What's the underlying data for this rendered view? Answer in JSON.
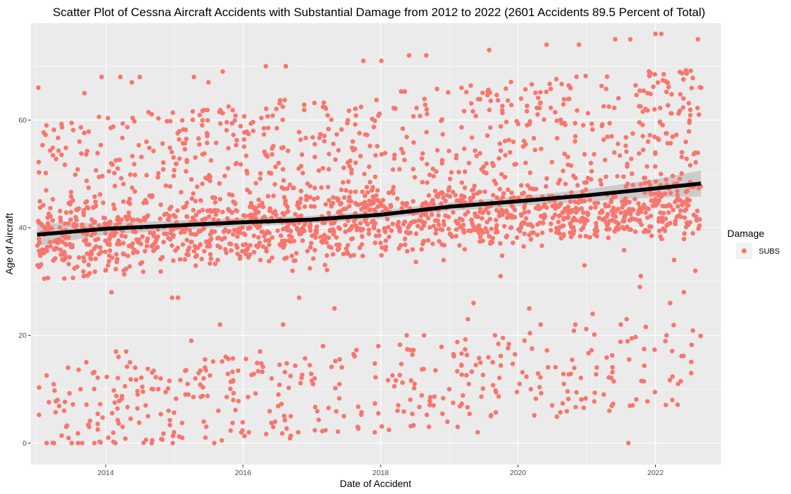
{
  "chart_data": {
    "type": "scatter",
    "title": "Scatter Plot of Cessna Aircraft Accidents with Substantial Damage from 2012 to 2022 (2601 Accidents 89.5 Percent of Total)",
    "xlabel": "Date of Accident",
    "ylabel": "Age of Aircraft",
    "x_scale": "date",
    "xlim": [
      "2012-11-29",
      "2022-12-15"
    ],
    "ylim": [
      -4,
      78
    ],
    "x_ticks": [
      {
        "value": "2014-01-01",
        "label": "2014"
      },
      {
        "value": "2016-01-01",
        "label": "2016"
      },
      {
        "value": "2018-01-01",
        "label": "2018"
      },
      {
        "value": "2020-01-01",
        "label": "2020"
      },
      {
        "value": "2022-01-01",
        "label": "2022"
      }
    ],
    "y_ticks": [
      {
        "value": 0,
        "label": "0"
      },
      {
        "value": 20,
        "label": "20"
      },
      {
        "value": 40,
        "label": "40"
      },
      {
        "value": 60,
        "label": "60"
      }
    ],
    "grid": true,
    "background": "#ebebeb",
    "point_color": "#f8766d",
    "trend_color": "#000000",
    "band_color": "#bdbdbd",
    "legend": {
      "title": "Damage",
      "position": "right",
      "entries": [
        {
          "label": "SUBS",
          "color": "#f8766d"
        }
      ]
    },
    "series": [
      {
        "name": "SUBS",
        "points": [
          [
            "2013-01-08",
            66
          ],
          [
            "2013-01-10",
            41
          ],
          [
            "2013-01-04",
            33
          ],
          [
            "2013-02-20",
            59
          ],
          [
            "2013-04-20",
            8
          ],
          [
            "2013-06-15",
            14
          ],
          [
            "2013-06-05",
            3
          ],
          [
            "2013-05-25",
            6
          ],
          [
            "2013-09-20",
            15
          ],
          [
            "2013-10-05",
            3
          ],
          [
            "2013-08-20",
            10
          ],
          [
            "2013-10-25",
            13
          ],
          [
            "2013-09-10",
            65
          ],
          [
            "2013-11-20",
            2.5
          ],
          [
            "2014-01-15",
            1
          ],
          [
            "2014-02-25",
            17
          ],
          [
            "2014-03-10",
            16
          ],
          [
            "2014-04-20",
            17
          ],
          [
            "2014-05-10",
            15
          ],
          [
            "2014-04-01",
            3
          ],
          [
            "2014-06-20",
            9
          ],
          [
            "2014-08-01",
            7
          ],
          [
            "2014-09-10",
            10
          ],
          [
            "2014-10-20",
            12
          ],
          [
            "2014-12-01",
            6
          ],
          [
            "2013-12-10",
            68
          ],
          [
            "2014-03-20",
            68
          ],
          [
            "2014-05-20",
            67
          ],
          [
            "2014-07-01",
            68
          ],
          [
            "2014-02-01",
            28
          ],
          [
            "2014-12-20",
            27
          ],
          [
            "2015-01-20",
            27
          ],
          [
            "2015-03-01",
            9
          ],
          [
            "2015-04-01",
            19
          ],
          [
            "2015-05-10",
            13
          ],
          [
            "2015-06-15",
            1
          ],
          [
            "2015-08-01",
            0
          ],
          [
            "2015-09-01",
            22
          ],
          [
            "2015-10-01",
            16
          ],
          [
            "2015-09-10",
            0.5
          ],
          [
            "2015-04-15",
            68
          ],
          [
            "2015-07-01",
            67
          ],
          [
            "2015-09-15",
            69
          ],
          [
            "2016-02-01",
            2
          ],
          [
            "2016-04-01",
            17
          ],
          [
            "2016-06-01",
            12
          ],
          [
            "2016-08-01",
            22
          ],
          [
            "2016-09-10",
            5
          ],
          [
            "2016-10-20",
            2
          ],
          [
            "2016-05-01",
            70
          ],
          [
            "2016-08-15",
            70
          ],
          [
            "2016-09-20",
            32
          ],
          [
            "2016-10-25",
            27
          ],
          [
            "2017-01-15",
            12
          ],
          [
            "2017-03-01",
            18
          ],
          [
            "2017-05-01",
            25
          ],
          [
            "2017-06-20",
            5
          ],
          [
            "2017-09-01",
            3
          ],
          [
            "2017-12-01",
            2
          ],
          [
            "2017-12-20",
            18
          ],
          [
            "2017-10-01",
            71
          ],
          [
            "2018-01-05",
            71
          ],
          [
            "2018-04-01",
            6
          ],
          [
            "2018-05-20",
            20
          ],
          [
            "2018-07-01",
            11
          ],
          [
            "2018-08-20",
            20
          ],
          [
            "2018-09-15",
            3
          ],
          [
            "2018-10-10",
            7
          ],
          [
            "2018-06-01",
            72
          ],
          [
            "2018-09-01",
            72
          ],
          [
            "2019-01-01",
            10
          ],
          [
            "2019-02-15",
            3
          ],
          [
            "2019-04-10",
            23
          ],
          [
            "2019-05-10",
            26
          ],
          [
            "2019-06-01",
            2
          ],
          [
            "2019-08-10",
            5
          ],
          [
            "2019-09-01",
            20
          ],
          [
            "2019-08-01",
            73
          ],
          [
            "2019-10-01",
            31
          ],
          [
            "2020-01-10",
            11
          ],
          [
            "2020-03-01",
            25
          ],
          [
            "2020-05-01",
            22
          ],
          [
            "2020-07-01",
            7
          ],
          [
            "2020-09-01",
            11
          ],
          [
            "2020-11-01",
            22
          ],
          [
            "2020-06-01",
            74
          ],
          [
            "2020-11-20",
            74
          ],
          [
            "2020-12-20",
            33
          ],
          [
            "2021-02-01",
            24
          ],
          [
            "2021-04-01",
            9
          ],
          [
            "2021-05-01",
            6
          ],
          [
            "2021-07-01",
            22
          ],
          [
            "2021-08-01",
            23
          ],
          [
            "2021-08-10",
            0
          ],
          [
            "2021-09-01",
            7
          ],
          [
            "2021-10-10",
            29
          ],
          [
            "2021-06-01",
            75
          ],
          [
            "2021-08-20",
            75
          ],
          [
            "2021-10-15",
            31
          ],
          [
            "2022-01-01",
            76
          ],
          [
            "2022-02-01",
            76
          ],
          [
            "2022-03-01",
            20
          ],
          [
            "2022-03-20",
            26
          ],
          [
            "2022-04-10",
            34
          ],
          [
            "2022-04-01",
            8
          ],
          [
            "2022-05-01",
            11
          ],
          [
            "2022-06-01",
            28
          ],
          [
            "2022-07-10",
            13
          ],
          [
            "2022-08-01",
            32
          ],
          [
            "2022-08-15",
            75
          ],
          [
            "2022-09-01",
            66
          ],
          [
            "2022-08-20",
            61
          ]
        ]
      }
    ],
    "trend": {
      "method": "smooth",
      "x": [
        "2013-01-01",
        "2014-01-01",
        "2015-01-01",
        "2016-01-01",
        "2017-01-01",
        "2018-01-01",
        "2019-01-01",
        "2020-01-01",
        "2021-01-01",
        "2022-01-01",
        "2022-08-31"
      ],
      "y": [
        38.7,
        39.8,
        40.4,
        41.0,
        41.5,
        42.4,
        43.9,
        44.9,
        46.0,
        47.3,
        48.2
      ],
      "lower": [
        36.6,
        38.7,
        39.5,
        40.2,
        40.8,
        41.6,
        43.1,
        44.0,
        44.9,
        45.6,
        45.8
      ],
      "upper": [
        40.8,
        40.9,
        41.3,
        41.8,
        42.2,
        43.2,
        44.7,
        45.8,
        47.1,
        49.0,
        50.6
      ]
    }
  }
}
